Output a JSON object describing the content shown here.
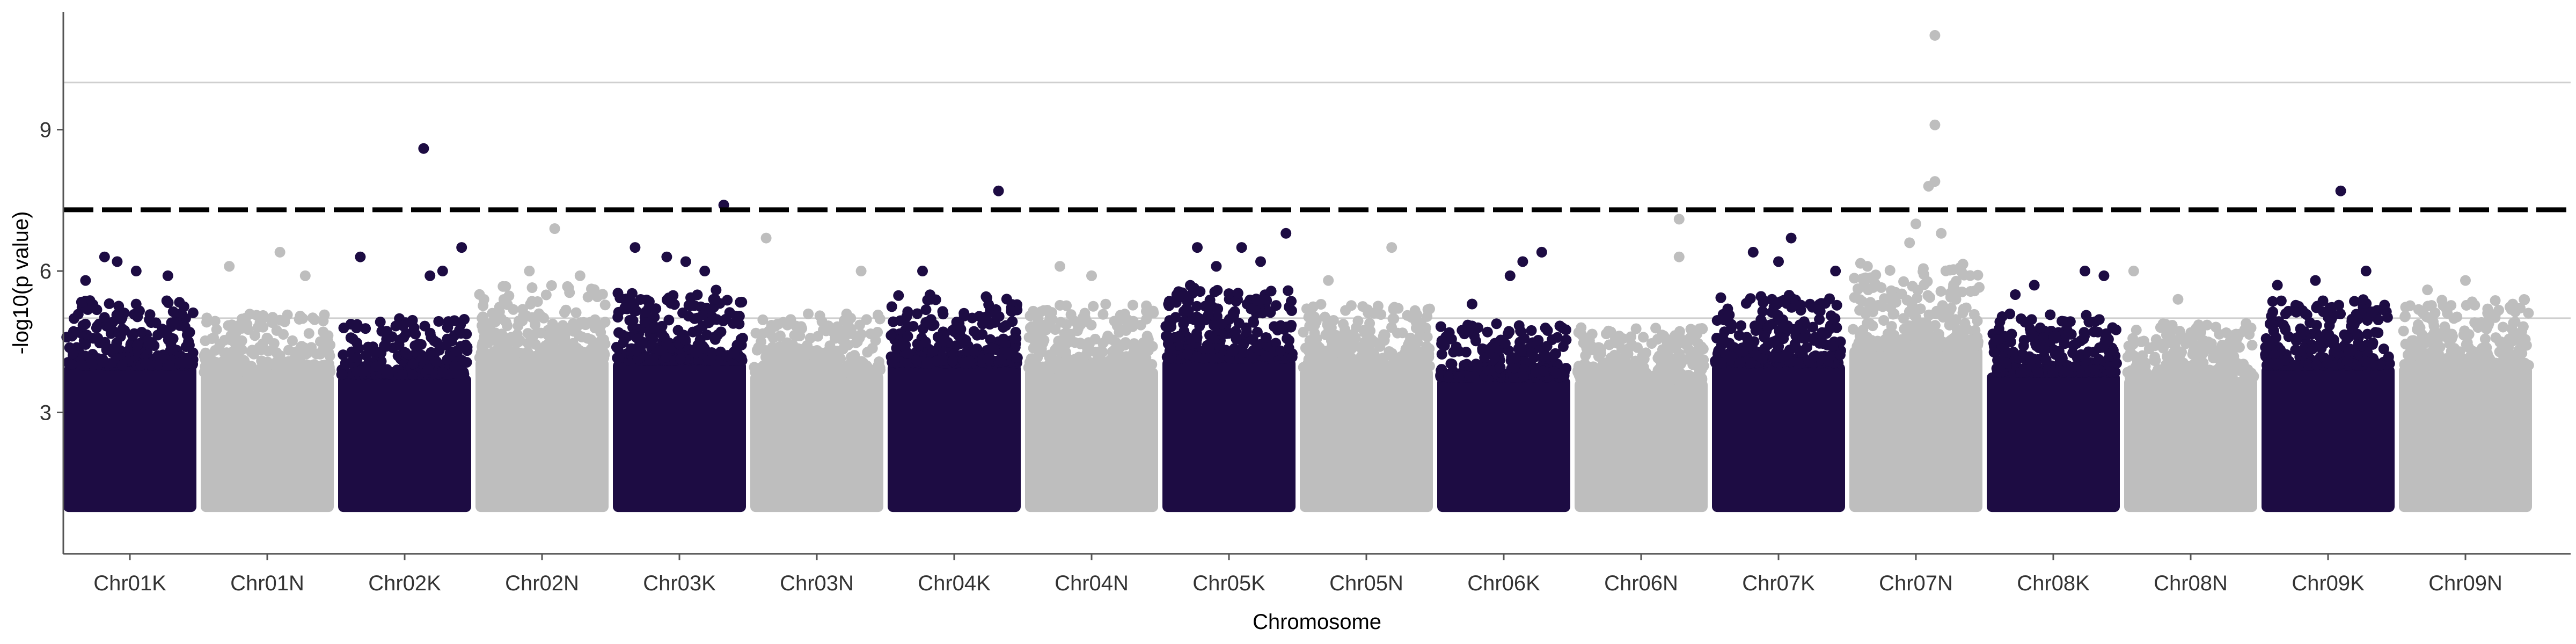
{
  "chart_data": {
    "type": "scatter",
    "subtype": "manhattan",
    "title": "",
    "xlabel": "Chromosome",
    "ylabel": "-log10(p value)",
    "ylim": [
      0,
      11.5
    ],
    "yticks": [
      3,
      6,
      9
    ],
    "grid": false,
    "reference_lines": {
      "solid": [
        5.0,
        10.0
      ],
      "dashed": [
        7.3
      ]
    },
    "colors": {
      "dark": "#1d0c43",
      "light": "#bebebe",
      "reference": "#cfcfcf",
      "threshold": "#000000",
      "axis": "#555555"
    },
    "categories": [
      "Chr01K",
      "Chr01N",
      "Chr02K",
      "Chr02N",
      "Chr03K",
      "Chr03N",
      "Chr04K",
      "Chr04N",
      "Chr05K",
      "Chr05N",
      "Chr06K",
      "Chr06N",
      "Chr07K",
      "Chr07N",
      "Chr08K",
      "Chr08N",
      "Chr09K",
      "Chr09N"
    ],
    "series": [
      {
        "chromosome": "Chr01K",
        "color": "dark",
        "typical_max": 5.0,
        "notable_points": [
          [
            0.3,
            6.3
          ],
          [
            0.4,
            6.2
          ],
          [
            0.55,
            6.0
          ],
          [
            0.8,
            5.9
          ],
          [
            0.15,
            5.8
          ]
        ]
      },
      {
        "chromosome": "Chr01N",
        "color": "light",
        "typical_max": 4.7,
        "notable_points": [
          [
            0.6,
            6.4
          ],
          [
            0.2,
            6.1
          ],
          [
            0.8,
            5.9
          ]
        ]
      },
      {
        "chromosome": "Chr02K",
        "color": "dark",
        "typical_max": 4.6,
        "notable_points": [
          [
            0.65,
            8.6
          ],
          [
            0.15,
            6.3
          ],
          [
            0.95,
            6.5
          ],
          [
            0.8,
            6.0
          ],
          [
            0.7,
            5.9
          ]
        ]
      },
      {
        "chromosome": "Chr02N",
        "color": "light",
        "typical_max": 5.3,
        "notable_points": [
          [
            0.6,
            6.9
          ],
          [
            0.4,
            6.0
          ],
          [
            0.8,
            5.9
          ]
        ]
      },
      {
        "chromosome": "Chr03K",
        "color": "dark",
        "typical_max": 5.2,
        "notable_points": [
          [
            0.85,
            7.4
          ],
          [
            0.15,
            6.5
          ],
          [
            0.4,
            6.3
          ],
          [
            0.55,
            6.2
          ],
          [
            0.7,
            6.0
          ]
        ]
      },
      {
        "chromosome": "Chr03N",
        "color": "light",
        "typical_max": 4.7,
        "notable_points": [
          [
            0.1,
            6.7
          ],
          [
            0.85,
            6.0
          ]
        ]
      },
      {
        "chromosome": "Chr04K",
        "color": "dark",
        "typical_max": 5.1,
        "notable_points": [
          [
            0.85,
            7.7
          ],
          [
            0.25,
            6.0
          ]
        ]
      },
      {
        "chromosome": "Chr04N",
        "color": "light",
        "typical_max": 4.9,
        "notable_points": [
          [
            0.25,
            6.1
          ],
          [
            0.5,
            5.9
          ]
        ]
      },
      {
        "chromosome": "Chr05K",
        "color": "dark",
        "typical_max": 5.3,
        "notable_points": [
          [
            0.95,
            6.8
          ],
          [
            0.25,
            6.5
          ],
          [
            0.6,
            6.5
          ],
          [
            0.75,
            6.2
          ],
          [
            0.4,
            6.1
          ]
        ]
      },
      {
        "chromosome": "Chr05N",
        "color": "light",
        "typical_max": 4.9,
        "notable_points": [
          [
            0.7,
            6.5
          ],
          [
            0.2,
            5.8
          ]
        ]
      },
      {
        "chromosome": "Chr06K",
        "color": "dark",
        "typical_max": 4.5,
        "notable_points": [
          [
            0.8,
            6.4
          ],
          [
            0.65,
            6.2
          ],
          [
            0.55,
            5.9
          ],
          [
            0.25,
            5.3
          ]
        ]
      },
      {
        "chromosome": "Chr06N",
        "color": "light",
        "typical_max": 4.4,
        "notable_points": [
          [
            0.8,
            7.1
          ],
          [
            0.8,
            6.3
          ]
        ]
      },
      {
        "chromosome": "Chr07K",
        "color": "dark",
        "typical_max": 5.1,
        "notable_points": [
          [
            0.6,
            6.7
          ],
          [
            0.3,
            6.4
          ],
          [
            0.5,
            6.2
          ],
          [
            0.95,
            6.0
          ]
        ]
      },
      {
        "chromosome": "Chr07N",
        "color": "light",
        "typical_max": 5.8,
        "notable_points": [
          [
            0.65,
            11.0
          ],
          [
            0.65,
            9.1
          ],
          [
            0.65,
            7.9
          ],
          [
            0.6,
            7.8
          ],
          [
            0.5,
            7.0
          ],
          [
            0.7,
            6.8
          ],
          [
            0.45,
            6.6
          ]
        ]
      },
      {
        "chromosome": "Chr08K",
        "color": "dark",
        "typical_max": 4.7,
        "notable_points": [
          [
            0.75,
            6.0
          ],
          [
            0.9,
            5.9
          ],
          [
            0.35,
            5.7
          ],
          [
            0.2,
            5.5
          ]
        ]
      },
      {
        "chromosome": "Chr08N",
        "color": "light",
        "typical_max": 4.5,
        "notable_points": [
          [
            0.05,
            6.0
          ],
          [
            0.4,
            5.4
          ]
        ]
      },
      {
        "chromosome": "Chr09K",
        "color": "dark",
        "typical_max": 5.0,
        "notable_points": [
          [
            0.6,
            7.7
          ],
          [
            0.8,
            6.0
          ],
          [
            0.1,
            5.7
          ],
          [
            0.4,
            5.8
          ]
        ]
      },
      {
        "chromosome": "Chr09N",
        "color": "light",
        "typical_max": 5.0,
        "notable_points": [
          [
            0.5,
            5.8
          ],
          [
            0.2,
            5.6
          ]
        ]
      }
    ]
  }
}
